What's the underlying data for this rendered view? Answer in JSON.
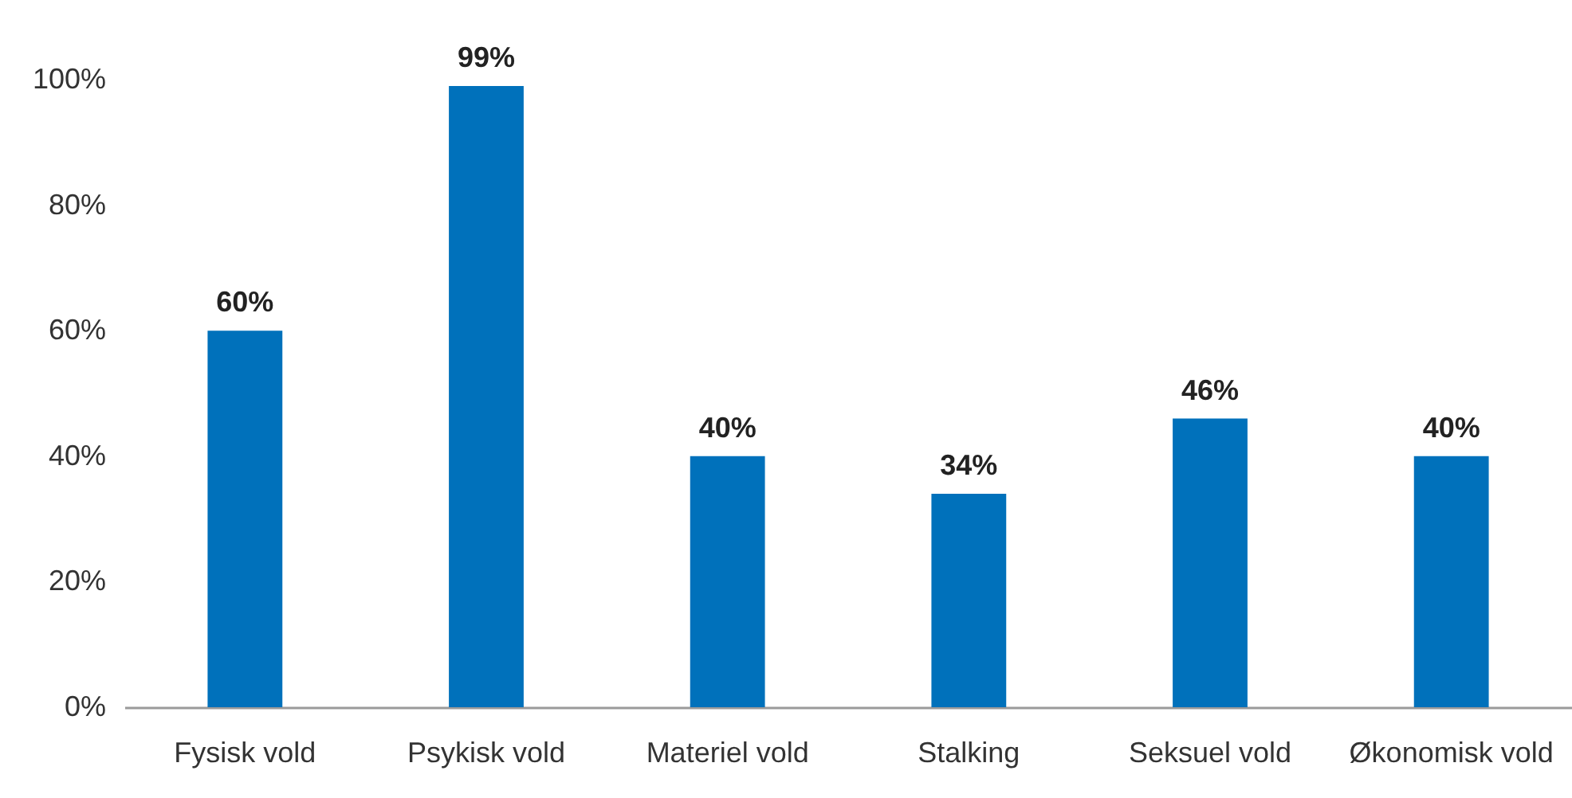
{
  "chart_data": {
    "type": "bar",
    "categories": [
      "Fysisk vold",
      "Psykisk vold",
      "Materiel vold",
      "Stalking",
      "Seksuel vold",
      "Økonomisk vold"
    ],
    "values": [
      60,
      99,
      40,
      34,
      46,
      40
    ],
    "value_labels": [
      "60%",
      "99%",
      "40%",
      "34%",
      "46%",
      "40%"
    ],
    "color": "#0071bb",
    "ylim": [
      0,
      100
    ],
    "yticks": [
      {
        "value": 0,
        "label": "0%"
      },
      {
        "value": 20,
        "label": "20%"
      },
      {
        "value": 40,
        "label": "40%"
      },
      {
        "value": 60,
        "label": "60%"
      },
      {
        "value": 80,
        "label": "80%"
      },
      {
        "value": 100,
        "label": "100%"
      }
    ],
    "grid": false
  }
}
